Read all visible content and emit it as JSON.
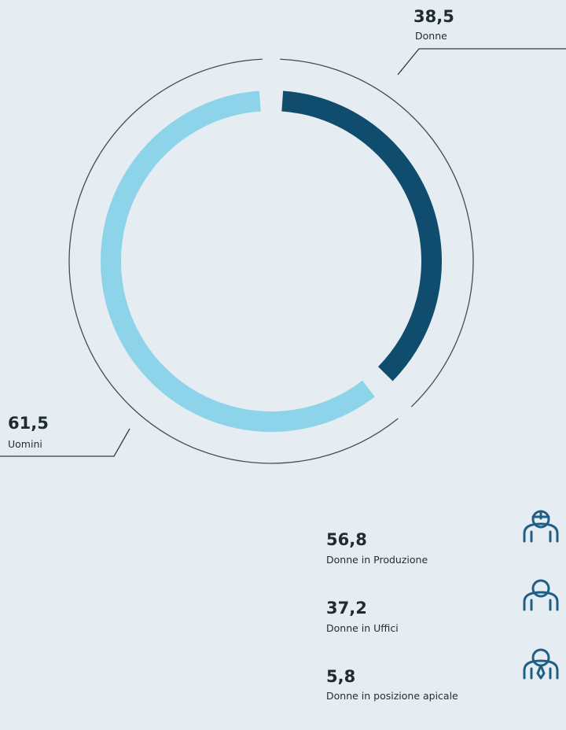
{
  "chart_data": {
    "type": "pie",
    "donut": true,
    "categories": [
      "Donne",
      "Uomini"
    ],
    "values": [
      38.5,
      61.5
    ],
    "value_labels": [
      "38,5",
      "61,5"
    ],
    "colors": [
      "#0f4c6e",
      "#8dd4ea"
    ]
  },
  "breakdown": {
    "items": [
      {
        "value": "56,8",
        "label": "Donne in Produzione"
      },
      {
        "value": "37,2",
        "label": "Donne in Uffici"
      },
      {
        "value": "5,8",
        "label": "Donne in posizione apicale"
      }
    ]
  }
}
